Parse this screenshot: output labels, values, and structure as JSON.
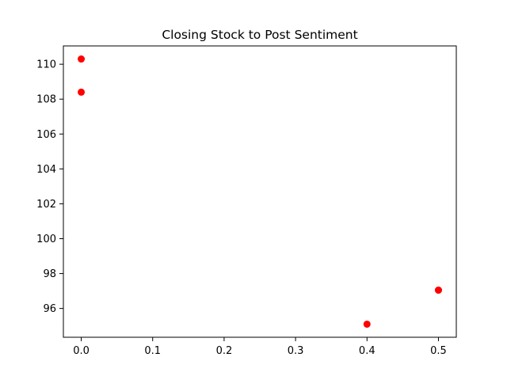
{
  "chart_data": {
    "type": "scatter",
    "title": "Closing Stock to Post Sentiment",
    "xlabel": "",
    "ylabel": "",
    "x": [
      0.0,
      0.0,
      0.4,
      0.5,
      0.5
    ],
    "y": [
      110.3,
      108.4,
      95.1,
      97.05,
      97.05
    ],
    "xlim": [
      -0.025,
      0.525
    ],
    "ylim": [
      94.35,
      111.05
    ],
    "xticks": [
      0.0,
      0.1,
      0.2,
      0.3,
      0.4,
      0.5
    ],
    "xtick_labels": [
      "0.0",
      "0.1",
      "0.2",
      "0.3",
      "0.4",
      "0.5"
    ],
    "yticks": [
      96,
      98,
      100,
      102,
      104,
      106,
      108,
      110
    ],
    "ytick_labels": [
      "96",
      "98",
      "100",
      "102",
      "104",
      "106",
      "108",
      "110"
    ],
    "grid": false,
    "legend": "none",
    "point_color": "#ff0000"
  }
}
